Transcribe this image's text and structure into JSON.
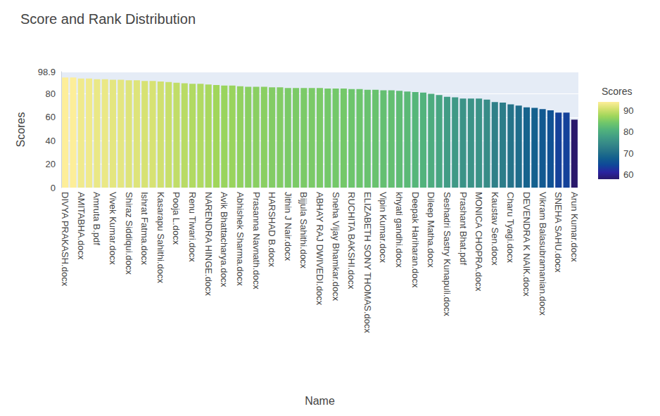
{
  "chart_data": {
    "type": "bar",
    "title": "Score and Rank Distribution",
    "x_label": "Name",
    "y_label": "Scores",
    "categories": [
      "DIVYA PRAKASH.docx",
      null,
      "AMITABHA.docx",
      null,
      "Amruta B.pdf",
      null,
      "Vivek Kumar.docx",
      null,
      "Shiraz Siddiqui.docx",
      null,
      "Ishrat Fatma.docx",
      null,
      "Kasarapu Sahithi.docx",
      null,
      "Pooja L.docx",
      null,
      "Renu Tiwari.docx",
      null,
      "NARENDRA HINGE.docx",
      null,
      "Avik Bhattacharya.docx",
      null,
      "Abhishek Sharma.docx",
      null,
      "Prasanna Navnath.docx",
      null,
      "HARSHAD B.docx",
      null,
      "Jithin J Nair.docx",
      null,
      "Bijjula Sahithi.docx",
      null,
      "ABHAY RAJ DWIVEDI.docx",
      null,
      "Sneha Vijay Bhamkar.docx",
      null,
      "RUCHITA BAKSHI.docx",
      null,
      "ELIZABETH SONY THOMAS.docx",
      null,
      "Vipin Kumar.docx",
      null,
      "khyati gandhi.docx",
      null,
      "Deepak Hariharan.docx",
      null,
      "Dileep Matha.docx",
      null,
      "Seshadri Sastry Kunapuli.docx",
      null,
      "Prashant Bhat.pdf",
      null,
      "MONICA CHOPRA.docx",
      null,
      "Kaustav Sen.docx",
      null,
      "Charu Tyagi.docx",
      null,
      "DEVENDRA K NAIK.docx",
      null,
      "Vikram Balasubramanian.docx",
      null,
      "SNEHA SAHU.docx",
      null,
      "Arun Kumar.docx"
    ],
    "values": [
      94,
      94,
      93,
      93,
      92.5,
      92.5,
      92,
      92,
      91.5,
      91.5,
      91,
      91,
      90.5,
      90,
      89.5,
      89,
      88.5,
      88.5,
      88,
      87.5,
      87,
      87,
      86.5,
      86,
      86,
      86,
      85.5,
      85.5,
      85,
      85,
      85,
      85,
      85,
      84.5,
      84.5,
      84.5,
      84,
      84,
      83.5,
      83.5,
      83,
      83,
      82.5,
      82,
      81.5,
      81,
      80,
      79,
      77.5,
      77,
      76,
      76,
      76,
      75,
      73,
      72.5,
      71,
      70,
      68.5,
      68,
      67,
      66,
      64,
      64,
      58
    ],
    "ylim": [
      0,
      98.9
    ],
    "yticks": [
      0,
      20,
      40,
      60,
      80
    ],
    "grid": true,
    "colorbar": {
      "title": "Scores",
      "range": [
        58,
        94
      ],
      "ticks": [
        60,
        70,
        80,
        90
      ]
    }
  }
}
